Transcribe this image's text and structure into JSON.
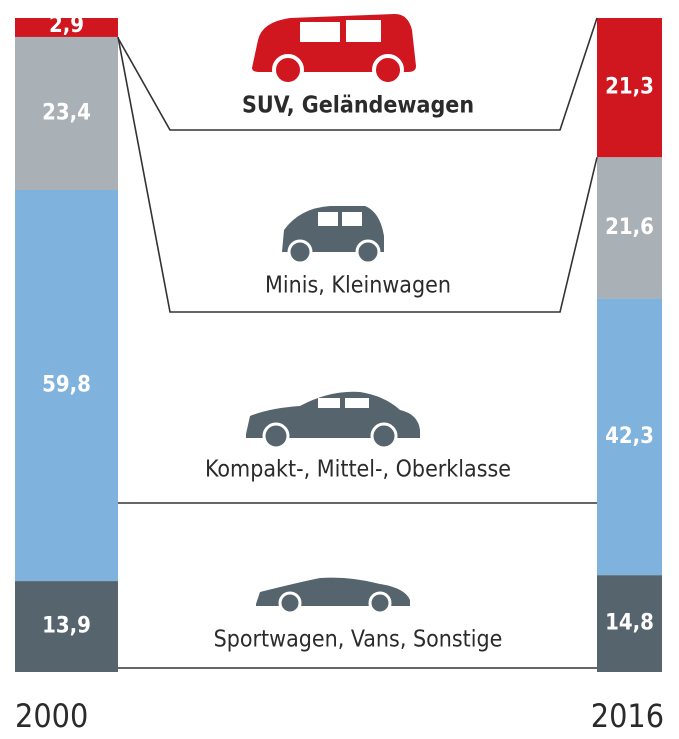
{
  "chart_data": {
    "type": "stacked_bar",
    "categories": [
      "2000",
      "2016"
    ],
    "series": [
      {
        "name": "SUV, Geländewagen",
        "color": "#d0161f",
        "values": [
          2.9,
          21.3
        ],
        "value_labels": [
          "2,9",
          "21,3"
        ]
      },
      {
        "name": "Minis, Kleinwagen",
        "color": "#a9b0b6",
        "values": [
          23.4,
          21.6
        ],
        "value_labels": [
          "23,4",
          "21,6"
        ]
      },
      {
        "name": "Kompakt-, Mittel-, Oberklasse",
        "color": "#7fb2dc",
        "values": [
          59.8,
          42.3
        ],
        "value_labels": [
          "59,8",
          "42,3"
        ]
      },
      {
        "name": "Sportwagen, Vans, Sonstige",
        "color": "#56646e",
        "values": [
          13.9,
          14.8
        ],
        "value_labels": [
          "13,9",
          "14,8"
        ]
      }
    ]
  }
}
